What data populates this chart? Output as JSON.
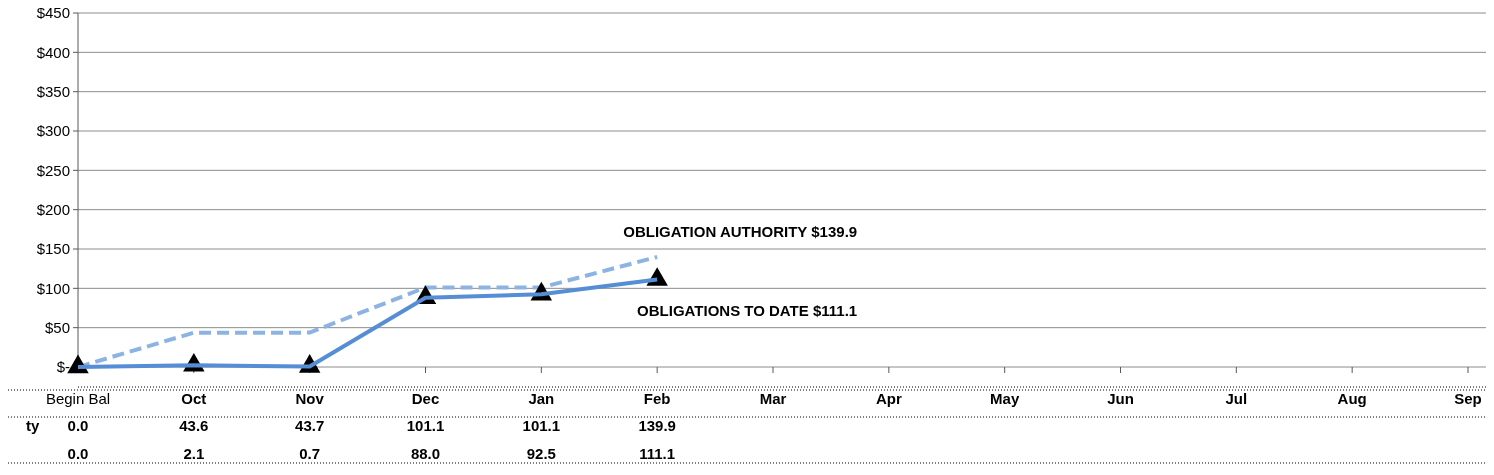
{
  "chart_data": {
    "type": "line",
    "categories": [
      "Begin Bal",
      "Oct",
      "Nov",
      "Dec",
      "Jan",
      "Feb",
      "Mar",
      "Apr",
      "May",
      "Jun",
      "Jul",
      "Aug",
      "Sep"
    ],
    "series": [
      {
        "color": "#8db3e2",
        "line_style": "dashed",
        "marker": "none",
        "values": [
          0.0,
          43.6,
          43.7,
          101.1,
          101.1,
          139.9,
          null,
          null,
          null,
          null,
          null,
          null,
          null
        ],
        "value_labels": [
          "0.0",
          "43.6",
          "43.7",
          "101.1",
          "101.1",
          "139.9",
          null,
          null,
          null,
          null,
          null,
          null,
          null
        ]
      },
      {
        "color": "#558ed5",
        "line_style": "solid",
        "marker": "triangle",
        "values": [
          0.0,
          2.1,
          0.7,
          88.0,
          92.5,
          111.1,
          null,
          null,
          null,
          null,
          null,
          null,
          null
        ],
        "value_labels": [
          "0.0",
          "2.1",
          "0.7",
          "88.0",
          "92.5",
          "111.1",
          null,
          null,
          null,
          null,
          null,
          null,
          null
        ]
      }
    ],
    "ylim": [
      0,
      450
    ],
    "yticks": [
      {
        "value": 0,
        "label": "$-"
      },
      {
        "value": 50,
        "label": "$50"
      },
      {
        "value": 100,
        "label": "$100"
      },
      {
        "value": 150,
        "label": "$150"
      },
      {
        "value": 200,
        "label": "$200"
      },
      {
        "value": 250,
        "label": "$250"
      },
      {
        "value": 300,
        "label": "$300"
      },
      {
        "value": 350,
        "label": "$350"
      },
      {
        "value": 400,
        "label": "$400"
      },
      {
        "value": 450,
        "label": "$450"
      }
    ],
    "grid": "y",
    "annotations": [
      {
        "text": "OBLIGATION AUTHORITY $139.9",
        "x": "Feb",
        "y": 139.9
      },
      {
        "text": "OBLIGATIONS TO DATE $111.1",
        "x": "Feb",
        "y": 111.1
      },
      "ty"
    ]
  }
}
